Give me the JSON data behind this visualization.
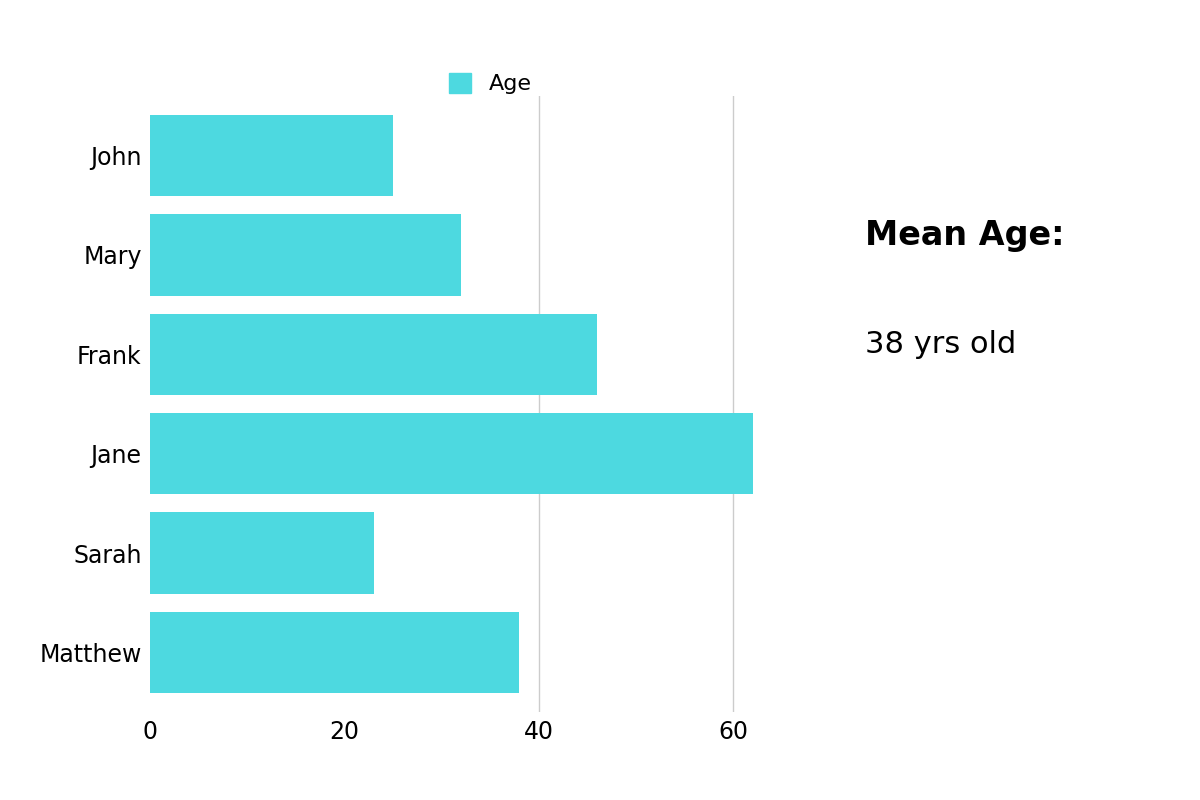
{
  "names": [
    "John",
    "Mary",
    "Frank",
    "Jane",
    "Sarah",
    "Matthew"
  ],
  "ages": [
    25,
    32,
    46,
    62,
    23,
    38
  ],
  "bar_color": "#4DD9E0",
  "background_color": "#ffffff",
  "mean_label": "Mean Age:",
  "mean_value_label": "38 yrs old",
  "legend_label": "Age",
  "xlim": [
    0,
    70
  ],
  "xticks": [
    0,
    20,
    40,
    60
  ],
  "gridline_x": [
    40,
    60
  ],
  "bar_height": 0.82,
  "name_fontsize": 17,
  "tick_fontsize": 17,
  "legend_fontsize": 16,
  "mean_title_fontsize": 24,
  "mean_value_fontsize": 22
}
